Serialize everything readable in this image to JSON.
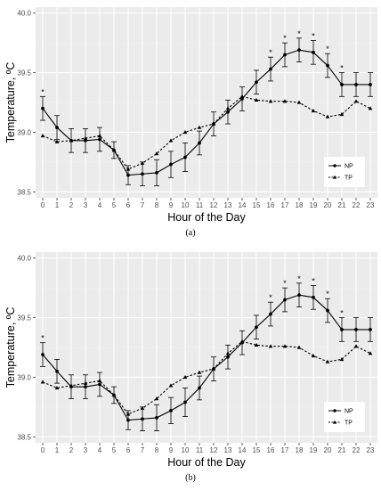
{
  "chart_data": [
    {
      "type": "line",
      "caption": "(a)",
      "xlabel": "Hour of the Day",
      "ylabel": "Temperature, ºC",
      "x": [
        0,
        1,
        2,
        3,
        4,
        5,
        6,
        7,
        8,
        9,
        10,
        11,
        12,
        13,
        14,
        15,
        16,
        17,
        18,
        19,
        20,
        21,
        22,
        23
      ],
      "xlim": [
        -0.5,
        23.5
      ],
      "ylim": [
        38.45,
        40.05
      ],
      "yticks": [
        38.5,
        39.0,
        39.5,
        40.0
      ],
      "ytick_labels": [
        "38.5",
        "39.0",
        "39.5",
        "40.0"
      ],
      "grid": true,
      "legend_position": "bottom-right",
      "series": [
        {
          "name": "NP",
          "style": "solid",
          "marker": "circle",
          "values": [
            39.2,
            39.04,
            38.93,
            38.93,
            38.94,
            38.85,
            38.64,
            38.65,
            38.66,
            38.73,
            38.79,
            38.91,
            39.07,
            39.17,
            39.28,
            39.42,
            39.53,
            39.65,
            39.69,
            39.67,
            39.56,
            39.4,
            39.4,
            39.4
          ],
          "err": [
            0.1,
            0.1,
            0.1,
            0.1,
            0.1,
            0.07,
            0.08,
            0.1,
            0.11,
            0.11,
            0.12,
            0.1,
            0.1,
            0.1,
            0.1,
            0.1,
            0.1,
            0.1,
            0.1,
            0.1,
            0.1,
            0.1,
            0.1,
            0.1
          ]
        },
        {
          "name": "TP",
          "style": "dashed",
          "marker": "triangle",
          "values": [
            38.97,
            38.92,
            38.93,
            38.95,
            38.97,
            38.85,
            38.69,
            38.74,
            38.82,
            38.93,
            39.0,
            39.04,
            39.07,
            39.2,
            39.3,
            39.27,
            39.26,
            39.26,
            39.25,
            39.18,
            39.13,
            39.15,
            39.26,
            39.2
          ]
        }
      ],
      "significance_hours": [
        0,
        16,
        17,
        18,
        19,
        20,
        21
      ],
      "significance_marker": "*"
    },
    {
      "type": "line",
      "caption": "(b)",
      "xlabel": "Hour of the Day",
      "ylabel": "Temperature, ºC",
      "x": [
        0,
        1,
        2,
        3,
        4,
        5,
        6,
        7,
        8,
        9,
        10,
        11,
        12,
        13,
        14,
        15,
        16,
        17,
        18,
        19,
        20,
        21,
        22,
        23
      ],
      "xlim": [
        -0.5,
        23.5
      ],
      "ylim": [
        38.45,
        40.05
      ],
      "yticks": [
        38.5,
        39.0,
        39.5,
        40.0
      ],
      "ytick_labels": [
        "38.5",
        "39.0",
        "39.5",
        "40.0"
      ],
      "grid": true,
      "legend_position": "bottom-right",
      "series": [
        {
          "name": "NP",
          "style": "solid",
          "marker": "circle",
          "values": [
            39.19,
            39.05,
            38.92,
            38.92,
            38.94,
            38.85,
            38.64,
            38.65,
            38.66,
            38.72,
            38.79,
            38.91,
            39.07,
            39.17,
            39.29,
            39.42,
            39.53,
            39.65,
            39.69,
            39.67,
            39.56,
            39.4,
            39.4,
            39.4
          ],
          "err": [
            0.1,
            0.1,
            0.1,
            0.1,
            0.1,
            0.07,
            0.08,
            0.1,
            0.11,
            0.11,
            0.12,
            0.1,
            0.1,
            0.1,
            0.1,
            0.1,
            0.1,
            0.1,
            0.1,
            0.1,
            0.1,
            0.1,
            0.1,
            0.1
          ]
        },
        {
          "name": "TP",
          "style": "dashed",
          "marker": "triangle",
          "values": [
            38.96,
            38.91,
            38.93,
            38.95,
            38.97,
            38.85,
            38.69,
            38.74,
            38.82,
            38.93,
            39.0,
            39.04,
            39.07,
            39.2,
            39.3,
            39.27,
            39.26,
            39.26,
            39.25,
            39.18,
            39.13,
            39.15,
            39.26,
            39.2
          ]
        }
      ],
      "significance_hours": [
        0,
        16,
        17,
        18,
        19,
        20,
        21
      ],
      "significance_marker": "*"
    }
  ]
}
